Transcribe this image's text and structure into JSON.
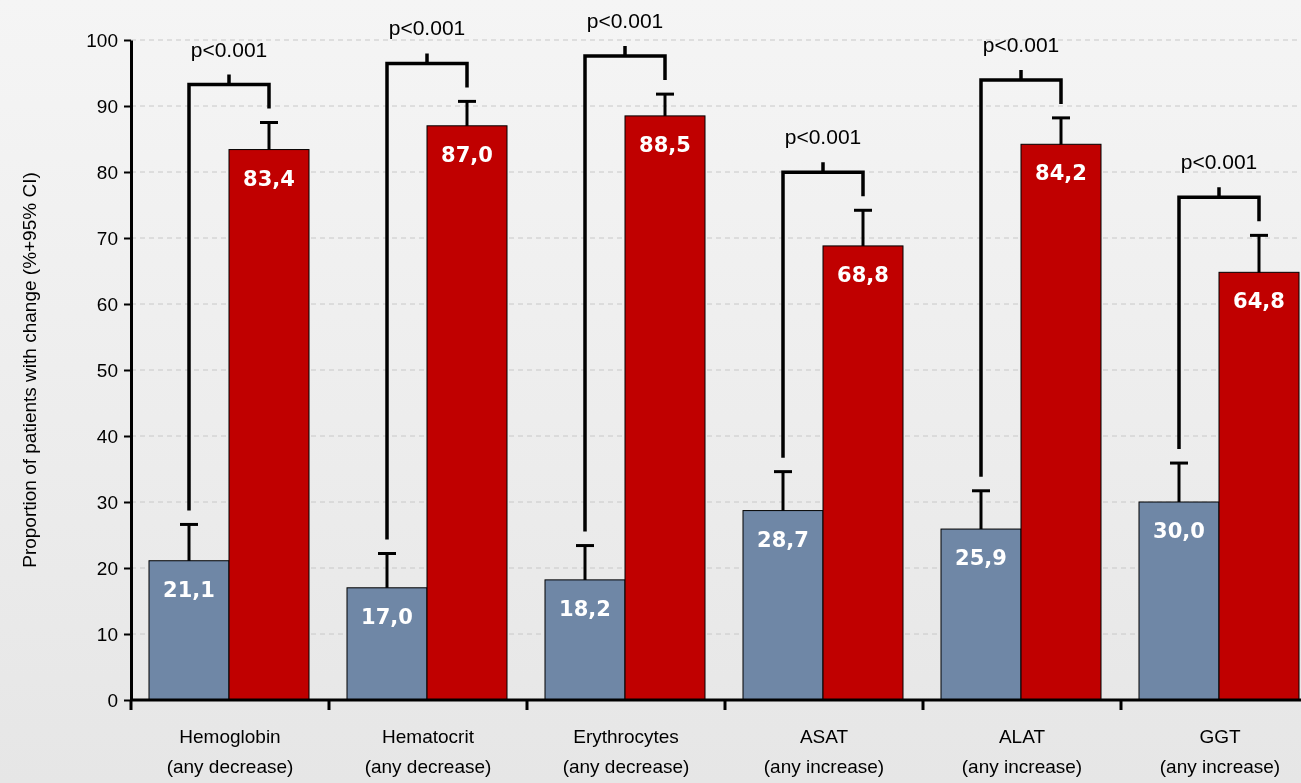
{
  "chart_data": {
    "type": "bar",
    "ylabel": "Proportion of patients with change (%+95% CI)",
    "categories": [
      "Hemoglobin\n(any decrease)",
      "Hematocrit\n(any decrease)",
      "Erythrocytes\n(any decrease)",
      "ASAT\n(any increase)",
      "ALAT\n(any increase)",
      "GGT\n(any increase)"
    ],
    "series": [
      {
        "color": "#6f87a6",
        "values": [
          21.1,
          17.0,
          18.2,
          28.7,
          25.9,
          30.0
        ],
        "errors": [
          5.5,
          5.2,
          5.2,
          5.9,
          5.8,
          5.9
        ],
        "value_labels": [
          "21,1",
          "17,0",
          "18,2",
          "28,7",
          "25,9",
          "30,0"
        ]
      },
      {
        "color": "#c00000",
        "values": [
          83.4,
          87.0,
          88.5,
          68.8,
          84.2,
          64.8
        ],
        "errors": [
          4.1,
          3.7,
          3.3,
          5.4,
          4.0,
          5.6
        ],
        "value_labels": [
          "83,4",
          "87,0",
          "88,5",
          "68,8",
          "84,2",
          "64,8"
        ]
      }
    ],
    "ylim": [
      0,
      100
    ],
    "yticks": [
      0,
      10,
      20,
      30,
      40,
      50,
      60,
      70,
      80,
      90,
      100
    ],
    "grid": "y",
    "annotations": [
      "p<0.001",
      "p<0.001",
      "p<0.001",
      "p<0.001",
      "p<0.001",
      "p<0.001"
    ]
  }
}
